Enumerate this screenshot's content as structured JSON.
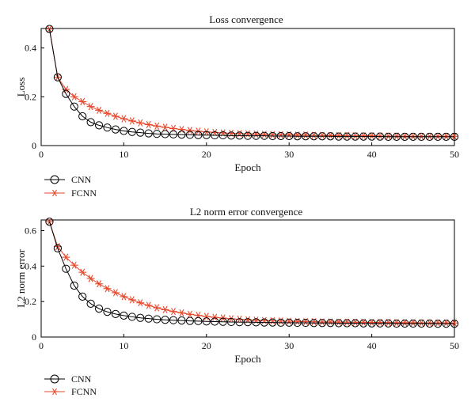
{
  "chart_data": [
    {
      "type": "line",
      "title": "Loss convergence",
      "xlabel": "Epoch",
      "ylabel": "Loss",
      "xlim": [
        0,
        50
      ],
      "ylim": [
        0,
        0.48
      ],
      "x_ticks": [
        "0",
        "10",
        "20",
        "30",
        "40",
        "50"
      ],
      "y_ticks": [
        "0",
        "0.2",
        "0.4"
      ],
      "grid": false,
      "legend_position": "below-left",
      "x": [
        1,
        2,
        3,
        4,
        5,
        6,
        7,
        8,
        9,
        10,
        11,
        12,
        13,
        14,
        15,
        16,
        17,
        18,
        19,
        20,
        21,
        22,
        23,
        24,
        25,
        26,
        27,
        28,
        29,
        30,
        31,
        32,
        33,
        34,
        35,
        36,
        37,
        38,
        39,
        40,
        41,
        42,
        43,
        44,
        45,
        46,
        47,
        48,
        49,
        50
      ],
      "series": [
        {
          "name": "CNN",
          "marker": "circle",
          "color": "#000000",
          "values": [
            0.478,
            0.28,
            0.212,
            0.16,
            0.12,
            0.096,
            0.083,
            0.074,
            0.066,
            0.06,
            0.056,
            0.053,
            0.05,
            0.048,
            0.047,
            0.046,
            0.045,
            0.044,
            0.043,
            0.043,
            0.042,
            0.042,
            0.041,
            0.041,
            0.04,
            0.04,
            0.04,
            0.039,
            0.039,
            0.039,
            0.038,
            0.038,
            0.038,
            0.038,
            0.038,
            0.037,
            0.037,
            0.037,
            0.037,
            0.037,
            0.037,
            0.036,
            0.036,
            0.036,
            0.036,
            0.036,
            0.036,
            0.036,
            0.036,
            0.036
          ]
        },
        {
          "name": "FCNN",
          "marker": "asterisk",
          "color": "#e8472a",
          "values": [
            0.478,
            0.28,
            0.23,
            0.2,
            0.18,
            0.16,
            0.145,
            0.132,
            0.12,
            0.11,
            0.101,
            0.093,
            0.086,
            0.08,
            0.075,
            0.07,
            0.066,
            0.062,
            0.059,
            0.056,
            0.054,
            0.052,
            0.05,
            0.049,
            0.048,
            0.047,
            0.046,
            0.045,
            0.044,
            0.044,
            0.043,
            0.043,
            0.042,
            0.042,
            0.041,
            0.041,
            0.041,
            0.04,
            0.04,
            0.04,
            0.039,
            0.039,
            0.039,
            0.038,
            0.038,
            0.038,
            0.038,
            0.038,
            0.038,
            0.038
          ]
        }
      ]
    },
    {
      "type": "line",
      "title": "L2 norm error convergence",
      "xlabel": "Epoch",
      "ylabel": "L2 norm error",
      "xlim": [
        0,
        50
      ],
      "ylim": [
        0,
        0.66
      ],
      "x_ticks": [
        "0",
        "10",
        "20",
        "30",
        "40",
        "50"
      ],
      "y_ticks": [
        "0",
        "0.2",
        "0.4",
        "0.6"
      ],
      "grid": false,
      "legend_position": "below-left",
      "x": [
        1,
        2,
        3,
        4,
        5,
        6,
        7,
        8,
        9,
        10,
        11,
        12,
        13,
        14,
        15,
        16,
        17,
        18,
        19,
        20,
        21,
        22,
        23,
        24,
        25,
        26,
        27,
        28,
        29,
        30,
        31,
        32,
        33,
        34,
        35,
        36,
        37,
        38,
        39,
        40,
        41,
        42,
        43,
        44,
        45,
        46,
        47,
        48,
        49,
        50
      ],
      "series": [
        {
          "name": "CNN",
          "marker": "circle",
          "color": "#000000",
          "values": [
            0.65,
            0.5,
            0.385,
            0.29,
            0.228,
            0.188,
            0.16,
            0.142,
            0.13,
            0.121,
            0.114,
            0.108,
            0.104,
            0.1,
            0.097,
            0.095,
            0.093,
            0.091,
            0.09,
            0.088,
            0.087,
            0.086,
            0.085,
            0.084,
            0.084,
            0.083,
            0.082,
            0.082,
            0.081,
            0.081,
            0.08,
            0.08,
            0.079,
            0.079,
            0.079,
            0.078,
            0.078,
            0.078,
            0.077,
            0.077,
            0.077,
            0.077,
            0.076,
            0.076,
            0.076,
            0.076,
            0.076,
            0.075,
            0.075,
            0.075
          ]
        },
        {
          "name": "FCNN",
          "marker": "asterisk",
          "color": "#e8472a",
          "values": [
            0.65,
            0.51,
            0.45,
            0.405,
            0.365,
            0.33,
            0.3,
            0.273,
            0.25,
            0.228,
            0.21,
            0.193,
            0.178,
            0.165,
            0.154,
            0.144,
            0.136,
            0.128,
            0.122,
            0.116,
            0.111,
            0.107,
            0.103,
            0.1,
            0.097,
            0.095,
            0.093,
            0.091,
            0.09,
            0.089,
            0.088,
            0.087,
            0.086,
            0.085,
            0.085,
            0.084,
            0.084,
            0.083,
            0.083,
            0.082,
            0.082,
            0.082,
            0.081,
            0.081,
            0.081,
            0.08,
            0.08,
            0.08,
            0.08,
            0.079
          ]
        }
      ]
    }
  ]
}
